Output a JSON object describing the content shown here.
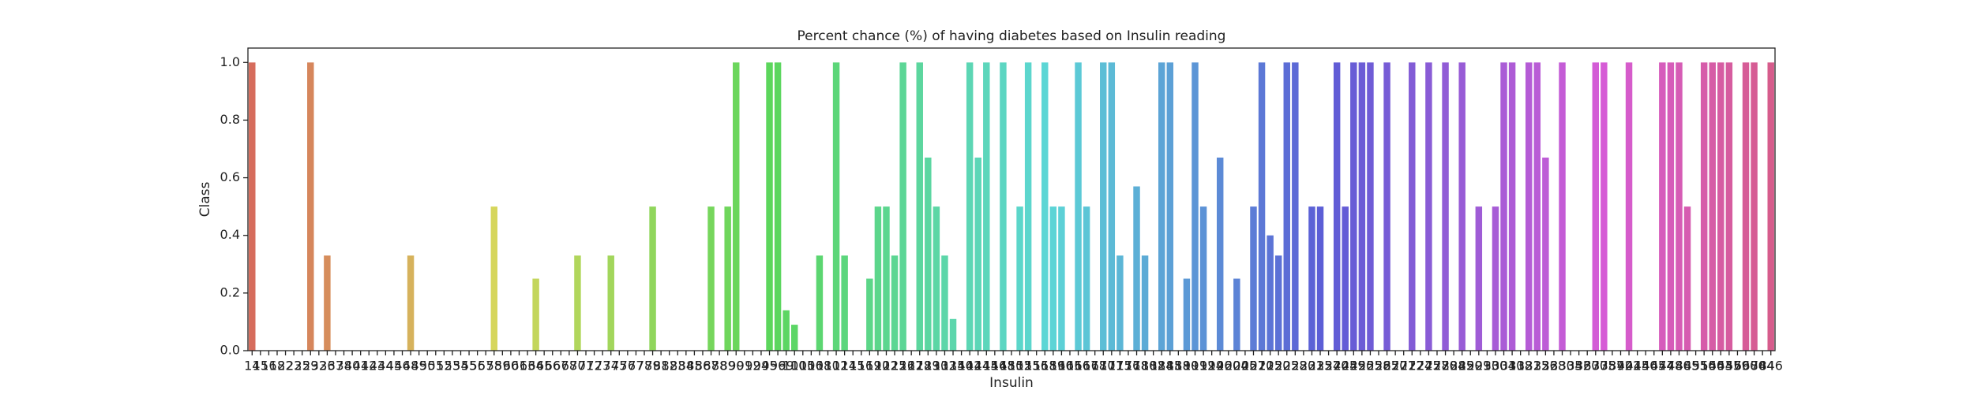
{
  "chart_data": {
    "type": "bar",
    "title": "Percent chance (%) of having diabetes based on Insulin reading",
    "x_label": "Insulin",
    "y_label": "Class",
    "palette": "husl",
    "categories": [
      14,
      15,
      16,
      18,
      22,
      23,
      25,
      29,
      32,
      36,
      37,
      38,
      40,
      41,
      42,
      43,
      44,
      45,
      46,
      48,
      49,
      50,
      51,
      52,
      53,
      54,
      55,
      56,
      57,
      58,
      59,
      60,
      61,
      63,
      64,
      65,
      66,
      67,
      68,
      70,
      71,
      72,
      73,
      74,
      75,
      76,
      77,
      78,
      79,
      81,
      82,
      83,
      84,
      85,
      86,
      87,
      88,
      89,
      90,
      91,
      92,
      94,
      95,
      96,
      99,
      100,
      105,
      106,
      108,
      110,
      112,
      114,
      115,
      116,
      119,
      120,
      122,
      125,
      126,
      127,
      128,
      129,
      130,
      132,
      135,
      140,
      142,
      144,
      145,
      146,
      148,
      150,
      152,
      155,
      156,
      158,
      159,
      160,
      165,
      166,
      167,
      168,
      170,
      171,
      175,
      176,
      178,
      180,
      182,
      184,
      185,
      188,
      190,
      191,
      192,
      194,
      196,
      200,
      204,
      205,
      207,
      210,
      215,
      220,
      225,
      228,
      230,
      231,
      235,
      237,
      240,
      245,
      249,
      250,
      255,
      258,
      265,
      270,
      271,
      272,
      274,
      275,
      277,
      280,
      284,
      285,
      290,
      291,
      293,
      300,
      304,
      310,
      318,
      321,
      325,
      326,
      328,
      330,
      335,
      342,
      360,
      370,
      375,
      387,
      392,
      402,
      415,
      440,
      465,
      474,
      478,
      480,
      485,
      495,
      510,
      540,
      543,
      545,
      579,
      600,
      680,
      744,
      846
    ],
    "values": [
      1,
      0,
      0,
      0,
      0,
      0,
      0,
      1,
      0,
      0.33,
      0,
      0,
      0,
      0,
      0,
      0,
      0,
      0,
      0,
      0.33,
      0,
      0,
      0,
      0,
      0,
      0,
      0,
      0,
      0,
      0.5,
      0,
      0,
      0,
      0,
      0.25,
      0,
      0,
      0,
      0,
      0.33,
      0,
      0,
      0,
      0.33,
      0,
      0,
      0,
      0,
      0.5,
      0,
      0,
      0,
      0,
      0,
      0,
      0.5,
      0,
      0.5,
      1,
      0,
      0,
      0,
      1,
      1,
      0.14,
      0.09,
      0,
      0,
      0.33,
      0,
      1,
      0.33,
      0,
      0,
      0.25,
      0.5,
      0.5,
      0.33,
      1,
      0,
      1,
      0.67,
      0.5,
      0.33,
      0.11,
      0,
      1,
      0.67,
      1,
      0,
      1,
      0,
      0.5,
      1,
      0,
      1,
      0.5,
      0.5,
      0,
      1,
      0.5,
      0,
      1,
      1,
      0.33,
      0,
      0.57,
      0.33,
      0,
      1,
      1,
      0,
      0.25,
      1,
      0.5,
      0,
      0.67,
      0,
      0.25,
      0,
      0.5,
      1,
      0.4,
      0.33,
      1,
      1,
      0,
      0.5,
      0.5,
      0,
      1,
      0.5,
      1,
      1,
      1,
      0,
      1,
      0,
      0,
      1,
      0,
      1,
      0,
      1,
      0,
      1,
      0,
      0.5,
      0,
      0.5,
      1,
      1,
      0,
      1,
      1,
      0.67,
      0,
      1,
      0,
      0,
      0,
      1,
      1,
      0,
      0,
      1,
      0,
      0,
      0,
      1,
      1,
      1,
      0.5,
      0,
      1,
      1,
      1,
      1,
      0,
      1,
      1,
      0,
      1
    ],
    "ylim": [
      0,
      1.05
    ],
    "yticks": [
      {
        "value": 0,
        "label": "0.0"
      },
      0.2,
      0.4,
      0.6,
      0.8,
      {
        "value": 1,
        "label": "1.0"
      }
    ]
  }
}
